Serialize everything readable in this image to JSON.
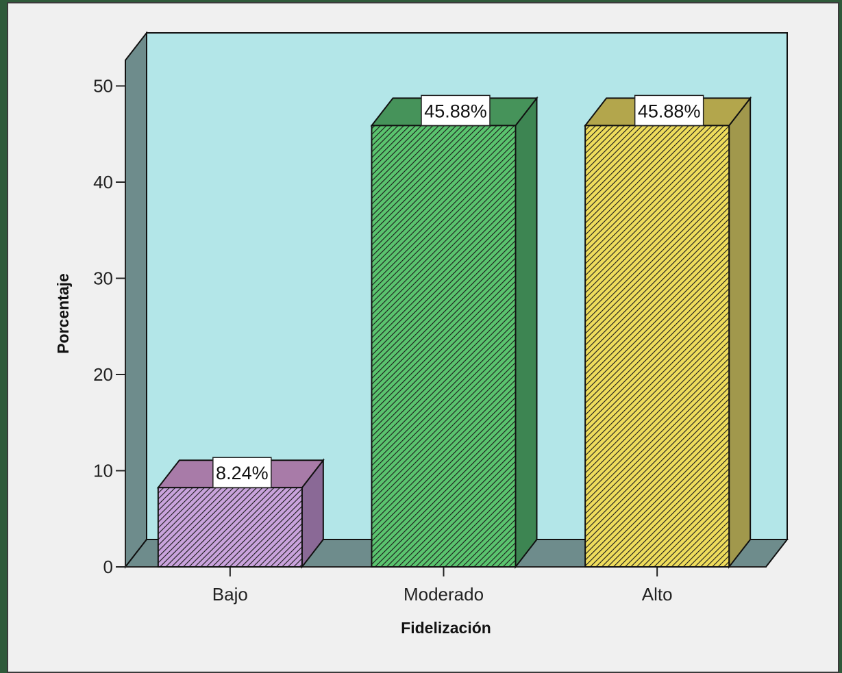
{
  "chart_data": {
    "type": "bar",
    "style": "3d",
    "categories": [
      "Bajo",
      "Moderado",
      "Alto"
    ],
    "values": [
      8.24,
      45.88,
      45.88
    ],
    "data_labels": [
      "8.24%",
      "45.88%",
      "45.88%"
    ],
    "xlabel": "Fidelización",
    "ylabel": "Porcentaje",
    "ylim": [
      0,
      50
    ],
    "yticks": [
      "0",
      "10",
      "20",
      "30",
      "40",
      "50"
    ],
    "grid": false,
    "legend": "none",
    "colors": {
      "plot_background": "#b3e6e8",
      "walls": "#6e8c8c",
      "bars": [
        {
          "front": "#c9a3dc",
          "top": "#a87ba8",
          "side": "#8a6996"
        },
        {
          "front": "#5ac36e",
          "top": "#46935a",
          "side": "#3d8552"
        },
        {
          "front": "#eedc5c",
          "top": "#b3a64c",
          "side": "#a1984c"
        }
      ]
    }
  }
}
